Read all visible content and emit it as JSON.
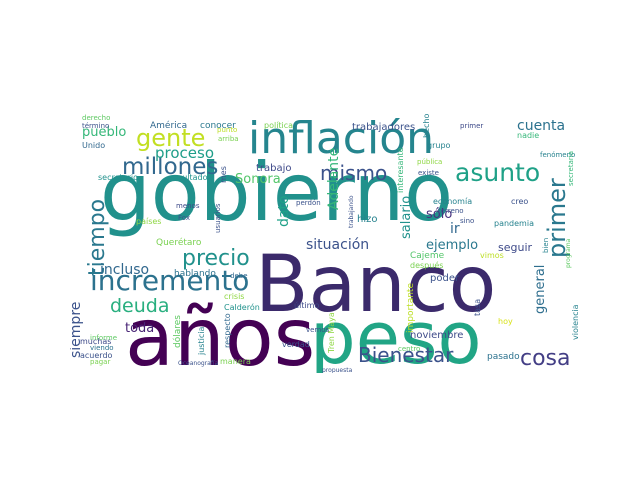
{
  "cloud": {
    "words": [
      {
        "text": "gobierno",
        "color": "#21918c"
      },
      {
        "text": "Banco",
        "color": "#3b2a6b"
      },
      {
        "text": "años",
        "color": "#440154"
      },
      {
        "text": "peso",
        "color": "#21a585"
      },
      {
        "text": "inflación",
        "color": "#25858e"
      },
      {
        "text": "gente",
        "color": "#c2df23"
      },
      {
        "text": "asunto",
        "color": "#1fa187"
      },
      {
        "text": "millones",
        "color": "#31688e"
      },
      {
        "text": "mismo",
        "color": "#3b528b"
      },
      {
        "text": "incremento",
        "color": "#2c728e"
      },
      {
        "text": "precio",
        "color": "#21918c"
      },
      {
        "text": "deuda",
        "color": "#29af7f"
      },
      {
        "text": "Bienestar",
        "color": "#3b528b"
      },
      {
        "text": "cosa",
        "color": "#433e85"
      },
      {
        "text": "primer",
        "color": "#2a788e"
      },
      {
        "text": "tiempo",
        "color": "#2a788e"
      },
      {
        "text": "cuenta",
        "color": "#2c728e"
      },
      {
        "text": "pueblo",
        "color": "#35b779"
      },
      {
        "text": "proceso",
        "color": "#1f9e89"
      },
      {
        "text": "situación",
        "color": "#3b528b"
      },
      {
        "text": "ejemplo",
        "color": "#2a788e"
      },
      {
        "text": "incluso",
        "color": "#31688e"
      },
      {
        "text": "Sonora",
        "color": "#52c569"
      },
      {
        "text": "sólo",
        "color": "#46327e"
      },
      {
        "text": "ir",
        "color": "#31688e"
      },
      {
        "text": "seguir",
        "color": "#3e4a89"
      },
      {
        "text": "general",
        "color": "#2e6e8e"
      },
      {
        "text": "toda",
        "color": "#482475"
      },
      {
        "text": "siempre",
        "color": "#3b528b"
      },
      {
        "text": "dato",
        "color": "#1fa188"
      },
      {
        "text": "Adelante",
        "color": "#35b779"
      },
      {
        "text": "salario",
        "color": "#20928c"
      },
      {
        "text": "trabajo",
        "color": "#3e4989"
      },
      {
        "text": "poder",
        "color": "#3b528b"
      },
      {
        "text": "hizo",
        "color": "#26828e"
      },
      {
        "text": "trabajadores",
        "color": "#3b528b"
      },
      {
        "text": "noviembre",
        "color": "#3e4a89"
      },
      {
        "text": "pasado",
        "color": "#2c728e"
      },
      {
        "text": "crisis",
        "color": "#8fd744"
      },
      {
        "text": "Calderón",
        "color": "#20928c"
      },
      {
        "text": "último",
        "color": "#3e4a89"
      },
      {
        "text": "hablando",
        "color": "#2c728e"
      },
      {
        "text": "importante",
        "color": "#bddf26"
      },
      {
        "text": "Cajeme",
        "color": "#52c569"
      },
      {
        "text": "Querétaro",
        "color": "#7ad151"
      },
      {
        "text": "Tren Maya",
        "color": "#8fd744"
      },
      {
        "text": "dólares",
        "color": "#5ec962"
      },
      {
        "text": "respecto",
        "color": "#31688e"
      },
      {
        "text": "justicia",
        "color": "#26828e"
      },
      {
        "text": "verdad",
        "color": "#3b528b"
      },
      {
        "text": "manera",
        "color": "#7ad151"
      },
      {
        "text": "muchas",
        "color": "#3e4a89"
      },
      {
        "text": "acuerdo",
        "color": "#3b528b"
      },
      {
        "text": "viendo",
        "color": "#2c728e"
      },
      {
        "text": "informe",
        "color": "#5ec962"
      },
      {
        "text": "pagar",
        "color": "#7ad151"
      },
      {
        "text": "Oceanografía",
        "color": "#3b528b"
      },
      {
        "text": "América",
        "color": "#31688e"
      },
      {
        "text": "conocer",
        "color": "#2a788e"
      },
      {
        "text": "política",
        "color": "#7ad151"
      },
      {
        "text": "derecho",
        "color": "#5ec962"
      },
      {
        "text": "término",
        "color": "#3b528b"
      },
      {
        "text": "Unido",
        "color": "#31688e"
      },
      {
        "text": "secretario",
        "color": "#21918c"
      },
      {
        "text": "resultado",
        "color": "#20928c"
      },
      {
        "text": "menos",
        "color": "#3e4a89"
      },
      {
        "text": "Fox",
        "color": "#3b528b"
      },
      {
        "text": "países",
        "color": "#8fd744"
      },
      {
        "text": "usuarios",
        "color": "#3b528b"
      },
      {
        "text": "debe",
        "color": "#31688e"
      },
      {
        "text": "mes",
        "color": "#3b528b"
      },
      {
        "text": "punto",
        "color": "#bddf26"
      },
      {
        "text": "arriba",
        "color": "#7ad151"
      },
      {
        "text": "perdón",
        "color": "#3b528b"
      },
      {
        "text": "trabajando",
        "color": "#3b528b"
      },
      {
        "text": "hecho",
        "color": "#26828e"
      },
      {
        "text": "grupo",
        "color": "#26828e"
      },
      {
        "text": "pública",
        "color": "#8fd744"
      },
      {
        "text": "existe",
        "color": "#3b528b"
      },
      {
        "text": "economía",
        "color": "#26828e"
      },
      {
        "text": "interesante",
        "color": "#35b779"
      },
      {
        "text": "sino",
        "color": "#3b528b"
      },
      {
        "text": "terreno",
        "color": "#3b528b"
      },
      {
        "text": "pandemia",
        "color": "#26828e"
      },
      {
        "text": "creo",
        "color": "#3b528b"
      },
      {
        "text": "primer",
        "color": "#3e4a89"
      },
      {
        "text": "nadie",
        "color": "#35b779"
      },
      {
        "text": "fenómeno",
        "color": "#26828e"
      },
      {
        "text": "secretaría",
        "color": "#35b779"
      },
      {
        "text": "bien",
        "color": "#26828e"
      },
      {
        "text": "programa",
        "color": "#5ec962"
      },
      {
        "text": "violencia",
        "color": "#26828e"
      },
      {
        "text": "vimos",
        "color": "#bddf26"
      },
      {
        "text": "después",
        "color": "#7ad151"
      },
      {
        "text": "tasa",
        "color": "#3b528b"
      },
      {
        "text": "hoy",
        "color": "#d8e219"
      },
      {
        "text": "vemos",
        "color": "#3b528b"
      },
      {
        "text": "propuesta",
        "color": "#3b528b"
      },
      {
        "text": "centro",
        "color": "#5ec962"
      }
    ]
  }
}
